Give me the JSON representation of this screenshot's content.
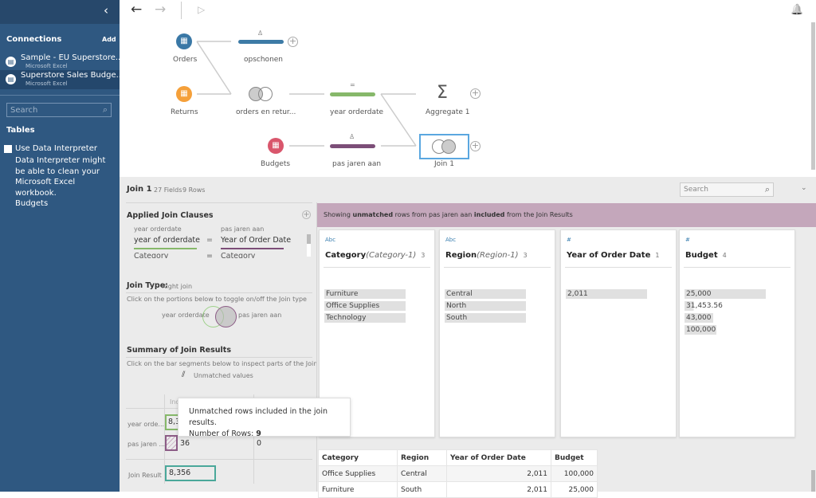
{
  "sidebar": {
    "collapse": "‹",
    "connections_title": "Connections",
    "add": "Add",
    "connections": [
      {
        "name": "Sample - EU Superstore....",
        "type": "Microsoft Excel"
      },
      {
        "name": "Superstore Sales Budge...",
        "type": "Microsoft Excel"
      }
    ],
    "search_placeholder": "Search",
    "tables_title": "Tables",
    "interpreter_label": "Use Data Interpreter",
    "interpreter_note": "Data Interpreter might be able to clean your Microsoft Excel workbook.",
    "tables": [
      "Budgets"
    ]
  },
  "toolbar": {
    "back": "←",
    "forward": "→",
    "run": "▷",
    "bell": "🔔"
  },
  "flow": {
    "nodes": [
      {
        "label": "Orders",
        "color": "#3a78a6"
      },
      {
        "label": "Returns",
        "color": "#f5a03a"
      },
      {
        "label": "Budgets",
        "color": "#d9566c"
      },
      {
        "label": "opschonen",
        "color": "#3d7ba6"
      },
      {
        "label": "orders en retur..."
      },
      {
        "label": "year orderdate",
        "color": "#86b86a"
      },
      {
        "label": "pas jaren aan",
        "color": "#7c4e78"
      },
      {
        "label": "Aggregate 1"
      },
      {
        "label": "Join 1"
      }
    ]
  },
  "panel": {
    "title": "Join 1",
    "fields": "27 Fields",
    "rows": "9 Rows",
    "search_placeholder": "Search",
    "clauses_title": "Applied Join Clauses",
    "left_source": "year orderdate",
    "right_source": "pas jaren aan",
    "clauses": [
      {
        "left": "year of orderdate",
        "op": "=",
        "right": "Year of Order Date"
      },
      {
        "left": "Category",
        "op": "=",
        "right": "Category"
      }
    ],
    "join_type_label": "Join Type:",
    "join_type": "Right join",
    "join_type_hint": "Click on the portions below to toggle on/off the Join type",
    "summary_title": "Summary of Join Results",
    "summary_hint": "Click on the bar segments below to inspect parts of the Join",
    "unmatched_legend": "Unmatched values",
    "summary_col": "Inc",
    "summary_rows": [
      {
        "label": "year orde...",
        "value": "8,3"
      },
      {
        "label": "pas jaren ...",
        "value": "36",
        "excluded": "0"
      },
      {
        "label": "Join Result",
        "value": "8,356"
      }
    ],
    "tooltip": {
      "line1": "Unmatched rows included in the join results.",
      "line2": "Number of Rows:",
      "count": "9"
    }
  },
  "banner": {
    "pre": "Showing ",
    "b1": "unmatched",
    "mid": " rows from pas jaren aan ",
    "b2": "included",
    "post": " from the Join Results"
  },
  "profile": [
    {
      "type": "Abc",
      "name": "Category",
      "alias": "(Category-1)",
      "count": "3",
      "values": [
        "Furniture",
        "Office Supplies",
        "Technology"
      ]
    },
    {
      "type": "Abc",
      "name": "Region",
      "alias": "(Region-1)",
      "count": "3",
      "values": [
        "Central",
        "North",
        "South"
      ]
    },
    {
      "type": "#",
      "name": "Year of Order Date",
      "alias": "",
      "count": "1",
      "values": [
        "2,011"
      ]
    },
    {
      "type": "#",
      "name": "Budget",
      "alias": "",
      "count": "4",
      "values": [
        "25,000",
        "31,453.56",
        "43,000",
        "100,000"
      ]
    }
  ],
  "grid": {
    "headers": [
      "Category",
      "Region",
      "Year of Order Date",
      "Budget"
    ],
    "rows": [
      [
        "Office Supplies",
        "Central",
        "2,011",
        "100,000"
      ],
      [
        "Furniture",
        "South",
        "2,011",
        "25,000"
      ]
    ]
  }
}
